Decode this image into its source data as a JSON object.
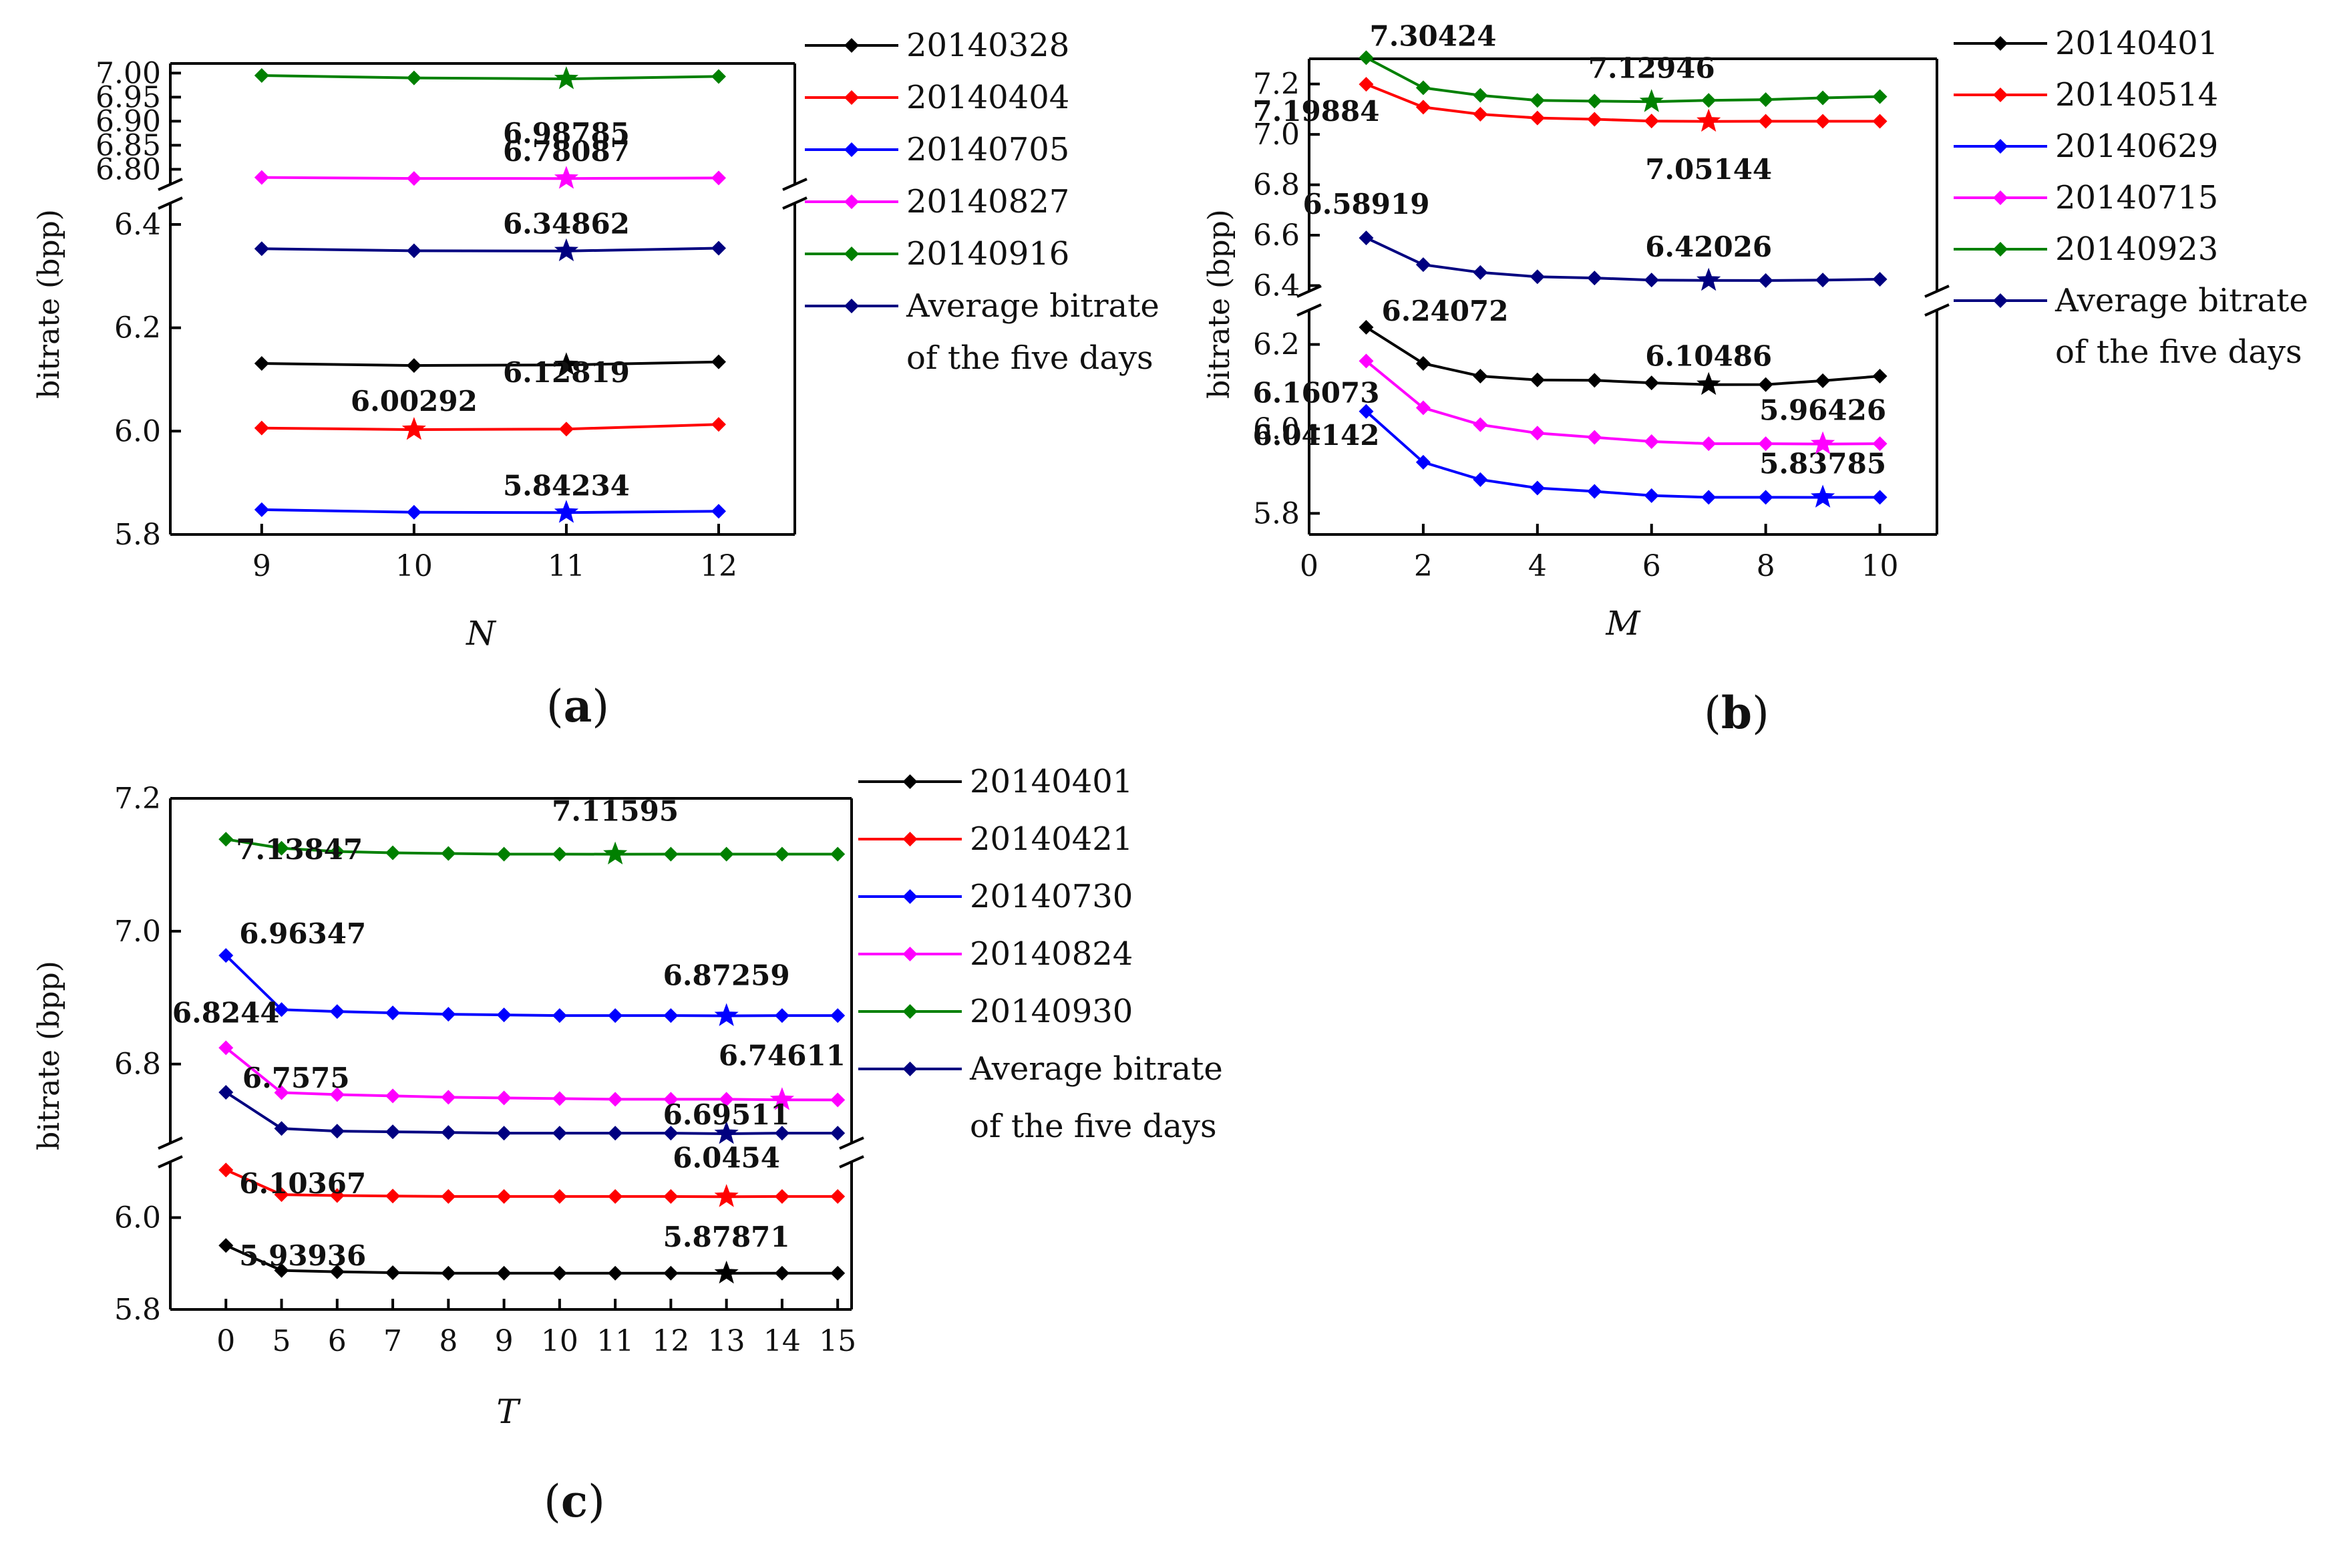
{
  "chart_data": [
    {
      "panel": "a",
      "type": "line",
      "caption_letter": "a",
      "xlabel": "N",
      "ylabel": "bitrate (bpp)",
      "x": [
        9,
        10,
        11,
        12
      ],
      "x_ticks": [
        "9",
        "10",
        "11",
        "12"
      ],
      "xlim": [
        8.4,
        12.5
      ],
      "axis_break": true,
      "y_segments": [
        {
          "range": [
            5.8,
            6.44
          ],
          "ticks": [
            "5.8",
            "6.0",
            "6.2",
            "6.4"
          ]
        },
        {
          "range": [
            6.77,
            7.02
          ],
          "ticks": [
            "6.80",
            "6.85",
            "6.90",
            "6.95",
            "7.00"
          ]
        }
      ],
      "series": [
        {
          "name": "20140328",
          "color": "#000000",
          "values": [
            6.131,
            6.127,
            6.12819,
            6.134
          ],
          "star_index": 2,
          "best": "6.12819"
        },
        {
          "name": "20140404",
          "color": "#ff0000",
          "values": [
            6.006,
            6.00292,
            6.004,
            6.013
          ],
          "star_index": 1,
          "best": "6.00292"
        },
        {
          "name": "20140705",
          "color": "#0000ff",
          "values": [
            5.848,
            5.843,
            5.84234,
            5.845
          ],
          "star_index": 2,
          "best": "5.84234"
        },
        {
          "name": "20140827",
          "color": "#ff00ff",
          "values": [
            6.783,
            6.781,
            6.78087,
            6.782
          ],
          "star_index": 2,
          "best": "6.78087"
        },
        {
          "name": "20140916",
          "color": "#008000",
          "values": [
            6.995,
            6.99,
            6.98785,
            6.993
          ],
          "star_index": 2,
          "best": "6.98785"
        },
        {
          "name": "Average bitrate of the five days",
          "legend_lines": [
            "Average bitrate",
            "of the five days"
          ],
          "color": "#000080",
          "values": [
            6.353,
            6.349,
            6.34862,
            6.354
          ],
          "star_index": 2,
          "best": "6.34862"
        }
      ]
    },
    {
      "panel": "b",
      "type": "line",
      "caption_letter": "b",
      "xlabel": "M",
      "ylabel": "bitrate (bpp)",
      "x": [
        1,
        2,
        3,
        4,
        5,
        6,
        7,
        8,
        9,
        10
      ],
      "x_ticks": [
        "0",
        "2",
        "4",
        "6",
        "8",
        "10"
      ],
      "x_tick_values": [
        0,
        2,
        4,
        6,
        8,
        10
      ],
      "xlim": [
        0,
        11
      ],
      "axis_break": true,
      "y_segments": [
        {
          "range": [
            5.75,
            6.28
          ],
          "ticks": [
            "5.8",
            "6.0",
            "6.2"
          ]
        },
        {
          "range": [
            6.38,
            7.3
          ],
          "ticks": [
            "6.4",
            "6.6",
            "6.8",
            "7.0",
            "7.2"
          ]
        }
      ],
      "series": [
        {
          "name": "20140401",
          "color": "#000000",
          "values": [
            6.24072,
            6.155,
            6.125,
            6.116,
            6.115,
            6.109,
            6.10486,
            6.105,
            6.114,
            6.125
          ],
          "star_index": 6,
          "first": "6.24072",
          "best": "6.10486"
        },
        {
          "name": "20140514",
          "color": "#ff0000",
          "values": [
            7.19884,
            7.108,
            7.08,
            7.065,
            7.06,
            7.053,
            7.05144,
            7.052,
            7.052,
            7.052
          ],
          "star_index": 6,
          "first": "7.19884",
          "best": "7.05144"
        },
        {
          "name": "20140629",
          "color": "#0000ff",
          "values": [
            6.04142,
            5.921,
            5.88,
            5.86,
            5.852,
            5.842,
            5.838,
            5.838,
            5.83785,
            5.838
          ],
          "star_index": 8,
          "first": "6.04142",
          "best": "5.83785"
        },
        {
          "name": "20140715",
          "color": "#ff00ff",
          "values": [
            6.16073,
            6.05,
            6.01,
            5.99,
            5.98,
            5.97,
            5.965,
            5.965,
            5.96426,
            5.965
          ],
          "star_index": 8,
          "first": "6.16073",
          "best": "5.96426"
        },
        {
          "name": "20140923",
          "color": "#008000",
          "values": [
            7.30424,
            7.185,
            7.155,
            7.135,
            7.132,
            7.12946,
            7.135,
            7.138,
            7.145,
            7.15
          ],
          "star_index": 5,
          "first": "7.30424",
          "best": "7.12946"
        },
        {
          "name": "Average bitrate of the five days",
          "legend_lines": [
            "Average bitrate",
            "of the five days"
          ],
          "color": "#000080",
          "values": [
            6.58919,
            6.483,
            6.452,
            6.435,
            6.43,
            6.422,
            6.42026,
            6.42,
            6.422,
            6.425
          ],
          "star_index": 6,
          "first": "6.58919",
          "best": "6.42026"
        }
      ]
    },
    {
      "panel": "c",
      "type": "line",
      "caption_letter": "c",
      "xlabel": "T",
      "ylabel": "bitrate (bpp)",
      "x": [
        0,
        5,
        6,
        7,
        8,
        9,
        10,
        11,
        12,
        13,
        14,
        15
      ],
      "x_ticks": [
        "0",
        "5",
        "6",
        "7",
        "8",
        "9",
        "10",
        "11",
        "12",
        "13",
        "14",
        "15"
      ],
      "x_categorical": true,
      "axis_break": true,
      "y_segments": [
        {
          "range": [
            5.8,
            6.12
          ],
          "ticks": [
            "5.8",
            "6.0"
          ]
        },
        {
          "range": [
            6.68,
            7.2
          ],
          "ticks": [
            "6.8",
            "7.0",
            "7.2"
          ]
        }
      ],
      "series": [
        {
          "name": "20140401",
          "color": "#000000",
          "values": [
            5.93936,
            5.885,
            5.882,
            5.88,
            5.879,
            5.879,
            5.879,
            5.879,
            5.879,
            5.87871,
            5.879,
            5.879
          ],
          "star_index": 9,
          "first": "5.93936",
          "best": "5.87871"
        },
        {
          "name": "20140421",
          "color": "#ff0000",
          "values": [
            6.10367,
            6.05,
            6.048,
            6.047,
            6.046,
            6.046,
            6.046,
            6.046,
            6.046,
            6.0454,
            6.046,
            6.046
          ],
          "star_index": 9,
          "first": "6.10367",
          "best": "6.0454"
        },
        {
          "name": "20140730",
          "color": "#0000ff",
          "values": [
            6.96347,
            6.882,
            6.879,
            6.877,
            6.875,
            6.874,
            6.873,
            6.873,
            6.873,
            6.87259,
            6.873,
            6.873
          ],
          "star_index": 9,
          "first": "6.96347",
          "best": "6.87259"
        },
        {
          "name": "20140824",
          "color": "#ff00ff",
          "values": [
            6.8244,
            6.757,
            6.754,
            6.752,
            6.75,
            6.749,
            6.748,
            6.747,
            6.747,
            6.747,
            6.74611,
            6.746
          ],
          "star_index": 10,
          "first": "6.8244",
          "best": "6.74611"
        },
        {
          "name": "20140930",
          "color": "#008000",
          "values": [
            7.13847,
            7.125,
            7.12,
            7.118,
            7.117,
            7.116,
            7.116,
            7.11595,
            7.116,
            7.116,
            7.116,
            7.116
          ],
          "star_index": 7,
          "first": "7.13847",
          "best": "7.11595"
        },
        {
          "name": "Average bitrate of the five days",
          "legend_lines": [
            "Average bitrate",
            "of the five days"
          ],
          "color": "#000080",
          "values": [
            6.7575,
            6.703,
            6.699,
            6.698,
            6.697,
            6.696,
            6.696,
            6.696,
            6.696,
            6.69511,
            6.696,
            6.696
          ],
          "star_index": 9,
          "first": "6.7575",
          "best": "6.69511"
        }
      ]
    }
  ]
}
